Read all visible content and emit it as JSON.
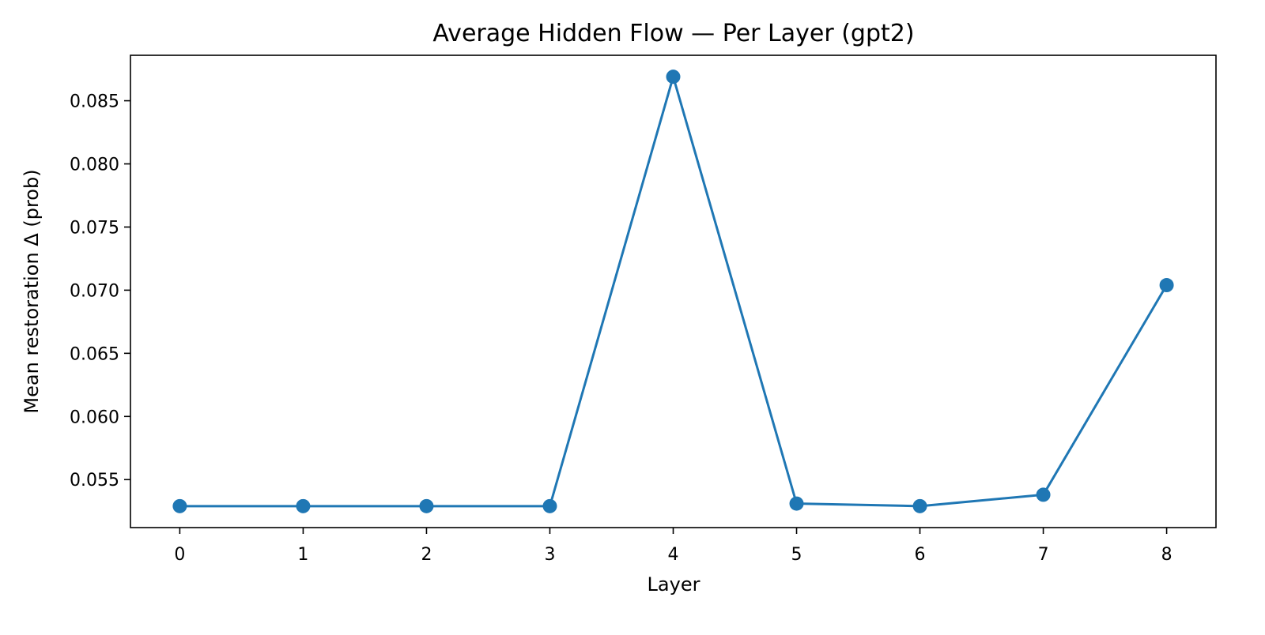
{
  "chart_data": {
    "type": "line",
    "title": "Average Hidden Flow — Per Layer (gpt2)",
    "xlabel": "Layer",
    "ylabel": "Mean restoration Δ (prob)",
    "x": [
      0,
      1,
      2,
      3,
      4,
      5,
      6,
      7,
      8
    ],
    "series": [
      {
        "values": [
          0.0529,
          0.0529,
          0.0529,
          0.0529,
          0.0869,
          0.0531,
          0.0529,
          0.0538,
          0.0704
        ],
        "color": "#1f77b4",
        "marker": "circle"
      }
    ],
    "xlim": [
      -0.4,
      8.4
    ],
    "ylim": [
      0.0512,
      0.0886
    ],
    "x_ticks": [
      0,
      1,
      2,
      3,
      4,
      5,
      6,
      7,
      8
    ],
    "y_ticks": [
      0.055,
      0.06,
      0.065,
      0.07,
      0.075,
      0.08,
      0.085
    ],
    "y_tick_labels": [
      "0.055",
      "0.060",
      "0.065",
      "0.070",
      "0.075",
      "0.080",
      "0.085"
    ],
    "grid": false,
    "legend": "none"
  }
}
